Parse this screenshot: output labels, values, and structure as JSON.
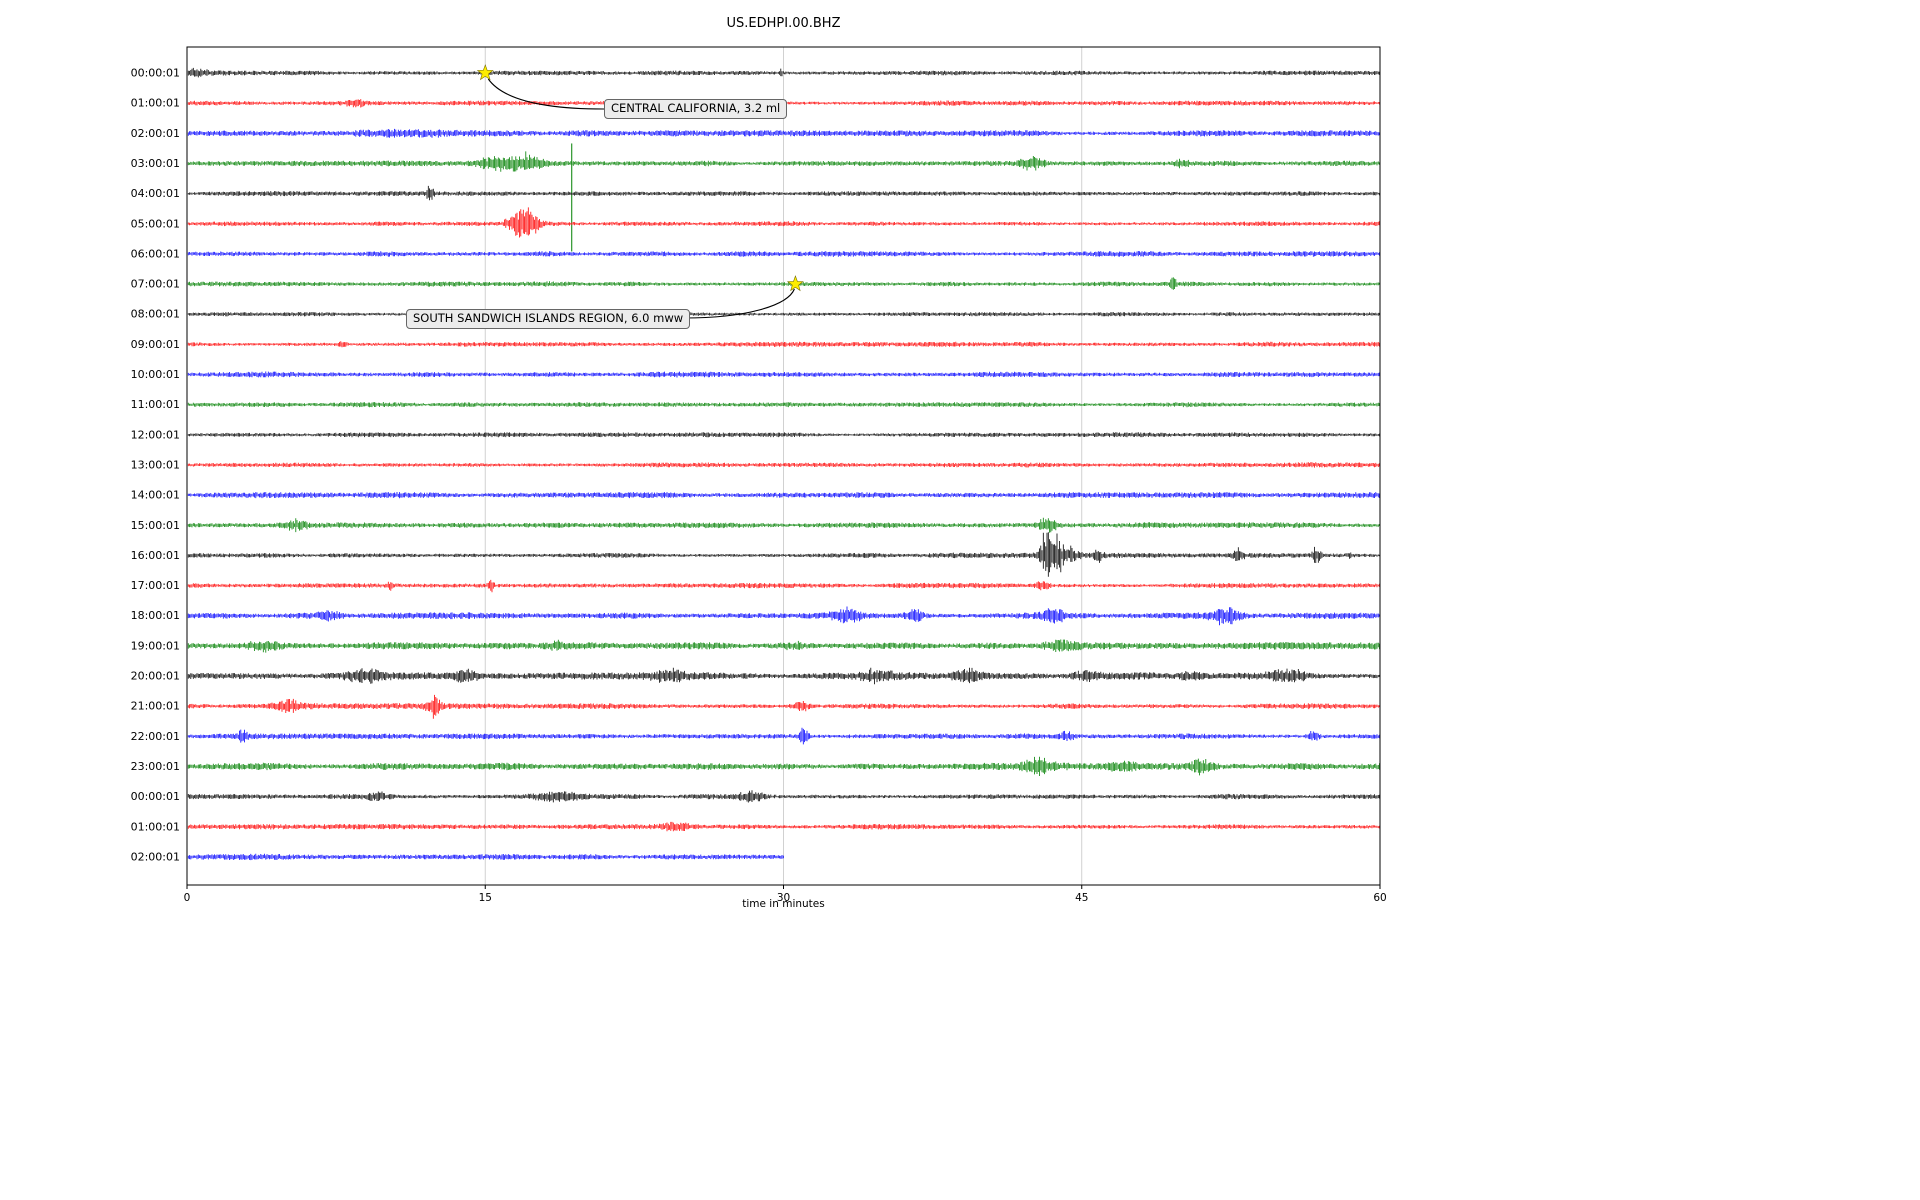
{
  "chart_data": {
    "type": "line",
    "kind": "seismogram-dayplot",
    "title": "US.EDHPI.00.BHZ",
    "xlabel": "time in minutes",
    "xlim": [
      0,
      60
    ],
    "x_ticks": [
      0,
      15,
      30,
      45,
      60
    ],
    "grid": "vertical gridlines at 15, 30, 45",
    "legend": "none",
    "color_cycle": [
      "#000000",
      "#ff0000",
      "#0000ff",
      "#008000"
    ],
    "grid_color": "#cccccc",
    "star_fill": "#ffed00",
    "star_edge": "#7a7000",
    "rows": [
      {
        "label": "00:00:01",
        "color": "#000000",
        "base_amp": 2.0,
        "t_end": 60,
        "bursts": [
          [
            0.4,
            0.5,
            3.5
          ],
          [
            29.9,
            0.05,
            7
          ]
        ],
        "spikes": []
      },
      {
        "label": "01:00:01",
        "color": "#ff0000",
        "base_amp": 2.0,
        "t_end": 60,
        "bursts": [
          [
            8.5,
            0.3,
            3
          ]
        ],
        "spikes": []
      },
      {
        "label": "02:00:01",
        "color": "#0000ff",
        "base_amp": 2.5,
        "t_end": 60,
        "bursts": [
          [
            11,
            2.0,
            2.5
          ]
        ],
        "spikes": []
      },
      {
        "label": "03:00:01",
        "color": "#008000",
        "base_amp": 2.2,
        "t_end": 60,
        "bursts": [
          [
            15.6,
            0.8,
            7
          ],
          [
            17.2,
            0.5,
            9
          ],
          [
            42.5,
            0.4,
            7
          ],
          [
            50,
            0.3,
            4
          ]
        ],
        "spikes": [
          [
            19.35,
            20,
            88
          ]
        ]
      },
      {
        "label": "04:00:01",
        "color": "#000000",
        "base_amp": 1.9,
        "t_end": 60,
        "bursts": [
          [
            12.2,
            0.12,
            12
          ]
        ],
        "spikes": []
      },
      {
        "label": "05:00:01",
        "color": "#ff0000",
        "base_amp": 2.0,
        "t_end": 60,
        "bursts": [
          [
            16.4,
            0.3,
            9
          ],
          [
            17.1,
            0.35,
            20
          ]
        ],
        "spikes": []
      },
      {
        "label": "06:00:01",
        "color": "#0000ff",
        "base_amp": 2.3,
        "t_end": 60,
        "bursts": [],
        "spikes": []
      },
      {
        "label": "07:00:01",
        "color": "#008000",
        "base_amp": 2.1,
        "t_end": 60,
        "bursts": [
          [
            49.6,
            0.08,
            11
          ]
        ],
        "spikes": []
      },
      {
        "label": "08:00:01",
        "color": "#000000",
        "base_amp": 1.8,
        "t_end": 60,
        "bursts": [],
        "spikes": []
      },
      {
        "label": "09:00:01",
        "color": "#ff0000",
        "base_amp": 2.1,
        "t_end": 60,
        "bursts": [
          [
            7.8,
            0.15,
            3.5
          ]
        ],
        "spikes": []
      },
      {
        "label": "10:00:01",
        "color": "#0000ff",
        "base_amp": 2.3,
        "t_end": 60,
        "bursts": [],
        "spikes": []
      },
      {
        "label": "11:00:01",
        "color": "#008000",
        "base_amp": 2.1,
        "t_end": 60,
        "bursts": [],
        "spikes": []
      },
      {
        "label": "12:00:01",
        "color": "#000000",
        "base_amp": 1.9,
        "t_end": 60,
        "bursts": [],
        "spikes": []
      },
      {
        "label": "13:00:01",
        "color": "#ff0000",
        "base_amp": 2.1,
        "t_end": 60,
        "bursts": [],
        "spikes": []
      },
      {
        "label": "14:00:01",
        "color": "#0000ff",
        "base_amp": 2.4,
        "t_end": 60,
        "bursts": [],
        "spikes": []
      },
      {
        "label": "15:00:01",
        "color": "#008000",
        "base_amp": 2.4,
        "t_end": 60,
        "bursts": [
          [
            5.5,
            0.5,
            5
          ],
          [
            43.3,
            0.3,
            9
          ]
        ],
        "spikes": []
      },
      {
        "label": "16:00:01",
        "color": "#000000",
        "base_amp": 2.1,
        "t_end": 60,
        "bursts": [
          [
            43.2,
            0.22,
            28
          ],
          [
            43.8,
            0.18,
            20
          ],
          [
            44.4,
            0.3,
            10
          ],
          [
            45.8,
            0.15,
            9
          ],
          [
            52.9,
            0.2,
            7
          ],
          [
            56.8,
            0.15,
            10
          ],
          [
            58.5,
            0.1,
            6
          ]
        ],
        "spikes": []
      },
      {
        "label": "17:00:01",
        "color": "#ff0000",
        "base_amp": 2.1,
        "t_end": 60,
        "bursts": [
          [
            10.2,
            0.1,
            5
          ],
          [
            15.3,
            0.1,
            6
          ],
          [
            43,
            0.3,
            4
          ]
        ],
        "spikes": []
      },
      {
        "label": "18:00:01",
        "color": "#0000ff",
        "base_amp": 2.6,
        "t_end": 60,
        "bursts": [
          [
            7.2,
            0.4,
            5
          ],
          [
            33.2,
            0.5,
            7
          ],
          [
            36.6,
            0.3,
            8
          ],
          [
            43.6,
            0.4,
            6
          ],
          [
            52.3,
            0.5,
            9
          ]
        ],
        "spikes": []
      },
      {
        "label": "19:00:01",
        "color": "#008000",
        "base_amp": 2.9,
        "t_end": 60,
        "bursts": [
          [
            3.8,
            0.6,
            4
          ],
          [
            18.5,
            0.5,
            4
          ],
          [
            30.5,
            0.4,
            3
          ],
          [
            44,
            0.6,
            5
          ]
        ],
        "spikes": []
      },
      {
        "label": "20:00:01",
        "color": "#000000",
        "base_amp": 2.9,
        "t_end": 60,
        "bursts": [
          [
            9,
            0.6,
            6
          ],
          [
            14,
            0.5,
            5
          ],
          [
            24.2,
            0.7,
            7
          ],
          [
            34.6,
            0.6,
            6
          ],
          [
            39.2,
            0.5,
            7
          ],
          [
            45.2,
            0.5,
            6
          ],
          [
            50.5,
            0.4,
            5
          ],
          [
            55.5,
            0.6,
            7
          ]
        ],
        "spikes": []
      },
      {
        "label": "21:00:01",
        "color": "#ff0000",
        "base_amp": 2.3,
        "t_end": 60,
        "bursts": [
          [
            5,
            0.4,
            7
          ],
          [
            12.4,
            0.25,
            12
          ],
          [
            30.9,
            0.3,
            5
          ]
        ],
        "spikes": []
      },
      {
        "label": "22:00:01",
        "color": "#0000ff",
        "base_amp": 2.3,
        "t_end": 60,
        "bursts": [
          [
            2.8,
            0.15,
            8
          ],
          [
            31,
            0.15,
            11
          ],
          [
            44.2,
            0.3,
            5
          ],
          [
            56.6,
            0.2,
            6
          ]
        ],
        "spikes": []
      },
      {
        "label": "23:00:01",
        "color": "#008000",
        "base_amp": 2.9,
        "t_end": 60,
        "bursts": [
          [
            42.8,
            0.5,
            7
          ],
          [
            47,
            0.4,
            6
          ],
          [
            51,
            0.4,
            7
          ]
        ],
        "spikes": []
      },
      {
        "label": "00:00:01",
        "color": "#000000",
        "base_amp": 2.1,
        "t_end": 60,
        "bursts": [
          [
            9.6,
            0.4,
            4
          ],
          [
            18.6,
            0.8,
            5
          ],
          [
            28.4,
            0.5,
            5
          ]
        ],
        "spikes": []
      },
      {
        "label": "01:00:01",
        "color": "#ff0000",
        "base_amp": 2.1,
        "t_end": 60,
        "bursts": [
          [
            24.6,
            0.4,
            5
          ]
        ],
        "spikes": []
      },
      {
        "label": "02:00:01",
        "color": "#0000ff",
        "base_amp": 2.4,
        "t_end": 30,
        "bursts": [],
        "spikes": []
      }
    ],
    "events": [
      {
        "label": "CENTRAL CALIFORNIA, 3.2 ml",
        "row": 0,
        "t": 15.0
      },
      {
        "label": "SOUTH SANDWICH ISLANDS REGION, 6.0 mww",
        "row": 7,
        "t": 30.6
      }
    ]
  }
}
